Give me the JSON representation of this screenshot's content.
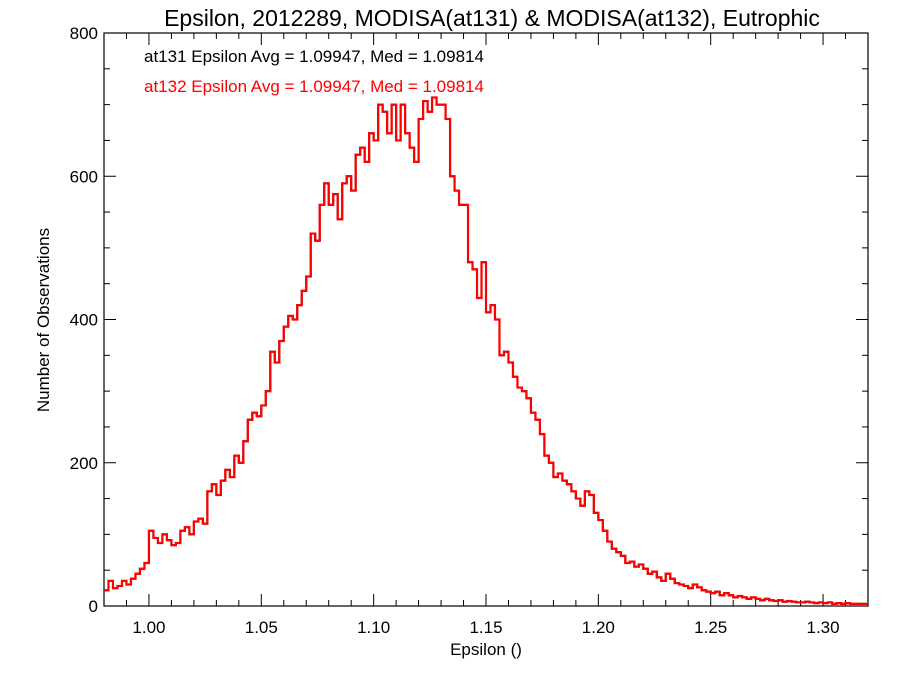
{
  "chart_data": {
    "type": "histogram",
    "title": "Epsilon, 2012289, MODISA(at131) & MODISA(at132), Eutrophic",
    "xlabel": "Epsilon ()",
    "ylabel": "Number of Observations",
    "xlim": [
      0.98,
      1.32
    ],
    "ylim": [
      0,
      800
    ],
    "xticks": [
      1.0,
      1.05,
      1.1,
      1.15,
      1.2,
      1.25,
      1.3
    ],
    "xtick_labels": [
      "1.00",
      "1.05",
      "1.10",
      "1.15",
      "1.20",
      "1.25",
      "1.30"
    ],
    "yticks": [
      0,
      200,
      400,
      600,
      800
    ],
    "ytick_labels": [
      "0",
      "200",
      "400",
      "600",
      "800"
    ],
    "grid": false,
    "annotations": [
      {
        "text": "at131 Epsilon Avg = 1.09947, Med = 1.09814",
        "color": "#000000"
      },
      {
        "text": "at132 Epsilon Avg = 1.09947, Med = 1.09814",
        "color": "#ff0000"
      }
    ],
    "bin_width": 0.002,
    "series": [
      {
        "color": "#000000",
        "x": [
          0.98,
          0.982,
          0.984,
          0.986,
          0.988,
          0.99,
          0.992,
          0.994,
          0.996,
          0.998,
          1.0,
          1.002,
          1.004,
          1.006,
          1.008,
          1.01,
          1.012,
          1.014,
          1.016,
          1.018,
          1.02,
          1.022,
          1.024,
          1.026,
          1.028,
          1.03,
          1.032,
          1.034,
          1.036,
          1.038,
          1.04,
          1.042,
          1.044,
          1.046,
          1.048,
          1.05,
          1.052,
          1.054,
          1.056,
          1.058,
          1.06,
          1.062,
          1.064,
          1.066,
          1.068,
          1.07,
          1.072,
          1.074,
          1.076,
          1.078,
          1.08,
          1.082,
          1.084,
          1.086,
          1.088,
          1.09,
          1.092,
          1.094,
          1.096,
          1.098,
          1.1,
          1.102,
          1.104,
          1.106,
          1.108,
          1.11,
          1.112,
          1.114,
          1.116,
          1.118,
          1.12,
          1.122,
          1.124,
          1.126,
          1.128,
          1.13,
          1.132,
          1.134,
          1.136,
          1.138,
          1.14,
          1.142,
          1.144,
          1.146,
          1.148,
          1.15,
          1.152,
          1.154,
          1.156,
          1.158,
          1.16,
          1.162,
          1.164,
          1.166,
          1.168,
          1.17,
          1.172,
          1.174,
          1.176,
          1.178,
          1.18,
          1.182,
          1.184,
          1.186,
          1.188,
          1.19,
          1.192,
          1.194,
          1.196,
          1.198,
          1.2,
          1.202,
          1.204,
          1.206,
          1.208,
          1.21,
          1.212,
          1.214,
          1.216,
          1.218,
          1.22,
          1.222,
          1.224,
          1.226,
          1.228,
          1.23,
          1.232,
          1.234,
          1.236,
          1.238,
          1.24,
          1.242,
          1.244,
          1.246,
          1.248,
          1.25,
          1.252,
          1.254,
          1.256,
          1.258,
          1.26,
          1.262,
          1.264,
          1.266,
          1.268,
          1.27,
          1.272,
          1.274,
          1.276,
          1.278,
          1.28,
          1.282,
          1.284,
          1.286,
          1.288,
          1.29,
          1.292,
          1.294,
          1.296,
          1.298,
          1.3,
          1.302,
          1.304,
          1.306,
          1.308,
          1.31,
          1.312,
          1.314,
          1.316,
          1.318
        ],
        "values": [
          22,
          35,
          25,
          28,
          35,
          30,
          38,
          45,
          52,
          60,
          105,
          95,
          88,
          100,
          92,
          85,
          88,
          105,
          110,
          100,
          118,
          122,
          115,
          160,
          170,
          155,
          175,
          190,
          180,
          210,
          200,
          230,
          260,
          270,
          265,
          280,
          300,
          355,
          340,
          370,
          390,
          405,
          400,
          420,
          440,
          460,
          520,
          510,
          560,
          590,
          560,
          575,
          540,
          590,
          600,
          580,
          630,
          640,
          620,
          660,
          650,
          700,
          690,
          660,
          700,
          650,
          700,
          660,
          640,
          620,
          680,
          705,
          690,
          710,
          700,
          700,
          680,
          600,
          580,
          560,
          560,
          480,
          470,
          430,
          480,
          410,
          420,
          400,
          350,
          355,
          340,
          320,
          305,
          300,
          290,
          270,
          260,
          240,
          210,
          200,
          180,
          185,
          175,
          170,
          160,
          150,
          140,
          160,
          155,
          130,
          120,
          105,
          90,
          80,
          75,
          70,
          60,
          62,
          55,
          58,
          52,
          45,
          48,
          40,
          35,
          45,
          38,
          32,
          30,
          28,
          25,
          30,
          26,
          22,
          20,
          18,
          20,
          15,
          18,
          15,
          12,
          14,
          12,
          10,
          12,
          10,
          8,
          10,
          8,
          7,
          8,
          6,
          7,
          6,
          5,
          5,
          6,
          5,
          4,
          5,
          4,
          5,
          3,
          4,
          3,
          4,
          3,
          3,
          3,
          3
        ]
      },
      {
        "color": "#ff0000",
        "x": [
          0.98,
          0.982,
          0.984,
          0.986,
          0.988,
          0.99,
          0.992,
          0.994,
          0.996,
          0.998,
          1.0,
          1.002,
          1.004,
          1.006,
          1.008,
          1.01,
          1.012,
          1.014,
          1.016,
          1.018,
          1.02,
          1.022,
          1.024,
          1.026,
          1.028,
          1.03,
          1.032,
          1.034,
          1.036,
          1.038,
          1.04,
          1.042,
          1.044,
          1.046,
          1.048,
          1.05,
          1.052,
          1.054,
          1.056,
          1.058,
          1.06,
          1.062,
          1.064,
          1.066,
          1.068,
          1.07,
          1.072,
          1.074,
          1.076,
          1.078,
          1.08,
          1.082,
          1.084,
          1.086,
          1.088,
          1.09,
          1.092,
          1.094,
          1.096,
          1.098,
          1.1,
          1.102,
          1.104,
          1.106,
          1.108,
          1.11,
          1.112,
          1.114,
          1.116,
          1.118,
          1.12,
          1.122,
          1.124,
          1.126,
          1.128,
          1.13,
          1.132,
          1.134,
          1.136,
          1.138,
          1.14,
          1.142,
          1.144,
          1.146,
          1.148,
          1.15,
          1.152,
          1.154,
          1.156,
          1.158,
          1.16,
          1.162,
          1.164,
          1.166,
          1.168,
          1.17,
          1.172,
          1.174,
          1.176,
          1.178,
          1.18,
          1.182,
          1.184,
          1.186,
          1.188,
          1.19,
          1.192,
          1.194,
          1.196,
          1.198,
          1.2,
          1.202,
          1.204,
          1.206,
          1.208,
          1.21,
          1.212,
          1.214,
          1.216,
          1.218,
          1.22,
          1.222,
          1.224,
          1.226,
          1.228,
          1.23,
          1.232,
          1.234,
          1.236,
          1.238,
          1.24,
          1.242,
          1.244,
          1.246,
          1.248,
          1.25,
          1.252,
          1.254,
          1.256,
          1.258,
          1.26,
          1.262,
          1.264,
          1.266,
          1.268,
          1.27,
          1.272,
          1.274,
          1.276,
          1.278,
          1.28,
          1.282,
          1.284,
          1.286,
          1.288,
          1.29,
          1.292,
          1.294,
          1.296,
          1.298,
          1.3,
          1.302,
          1.304,
          1.306,
          1.308,
          1.31,
          1.312,
          1.314,
          1.316,
          1.318
        ],
        "values": [
          22,
          35,
          25,
          28,
          35,
          30,
          38,
          45,
          52,
          60,
          105,
          95,
          88,
          100,
          92,
          85,
          88,
          105,
          110,
          100,
          118,
          122,
          115,
          160,
          170,
          155,
          175,
          190,
          180,
          210,
          200,
          230,
          260,
          270,
          265,
          280,
          300,
          355,
          340,
          370,
          390,
          405,
          400,
          420,
          440,
          460,
          520,
          510,
          560,
          590,
          560,
          575,
          540,
          590,
          600,
          580,
          630,
          640,
          620,
          660,
          650,
          700,
          690,
          660,
          700,
          650,
          700,
          660,
          640,
          620,
          680,
          705,
          690,
          710,
          700,
          700,
          680,
          600,
          580,
          560,
          560,
          480,
          470,
          430,
          480,
          410,
          420,
          400,
          350,
          355,
          340,
          320,
          305,
          300,
          290,
          270,
          260,
          240,
          210,
          200,
          180,
          185,
          175,
          170,
          160,
          150,
          140,
          160,
          155,
          130,
          120,
          105,
          90,
          80,
          75,
          70,
          60,
          62,
          55,
          58,
          52,
          45,
          48,
          40,
          35,
          45,
          38,
          32,
          30,
          28,
          25,
          30,
          26,
          22,
          20,
          18,
          20,
          15,
          18,
          15,
          12,
          14,
          12,
          10,
          12,
          10,
          8,
          10,
          8,
          7,
          8,
          6,
          7,
          6,
          5,
          5,
          6,
          5,
          4,
          5,
          4,
          5,
          3,
          4,
          3,
          4,
          3,
          3,
          3,
          3
        ]
      }
    ]
  }
}
